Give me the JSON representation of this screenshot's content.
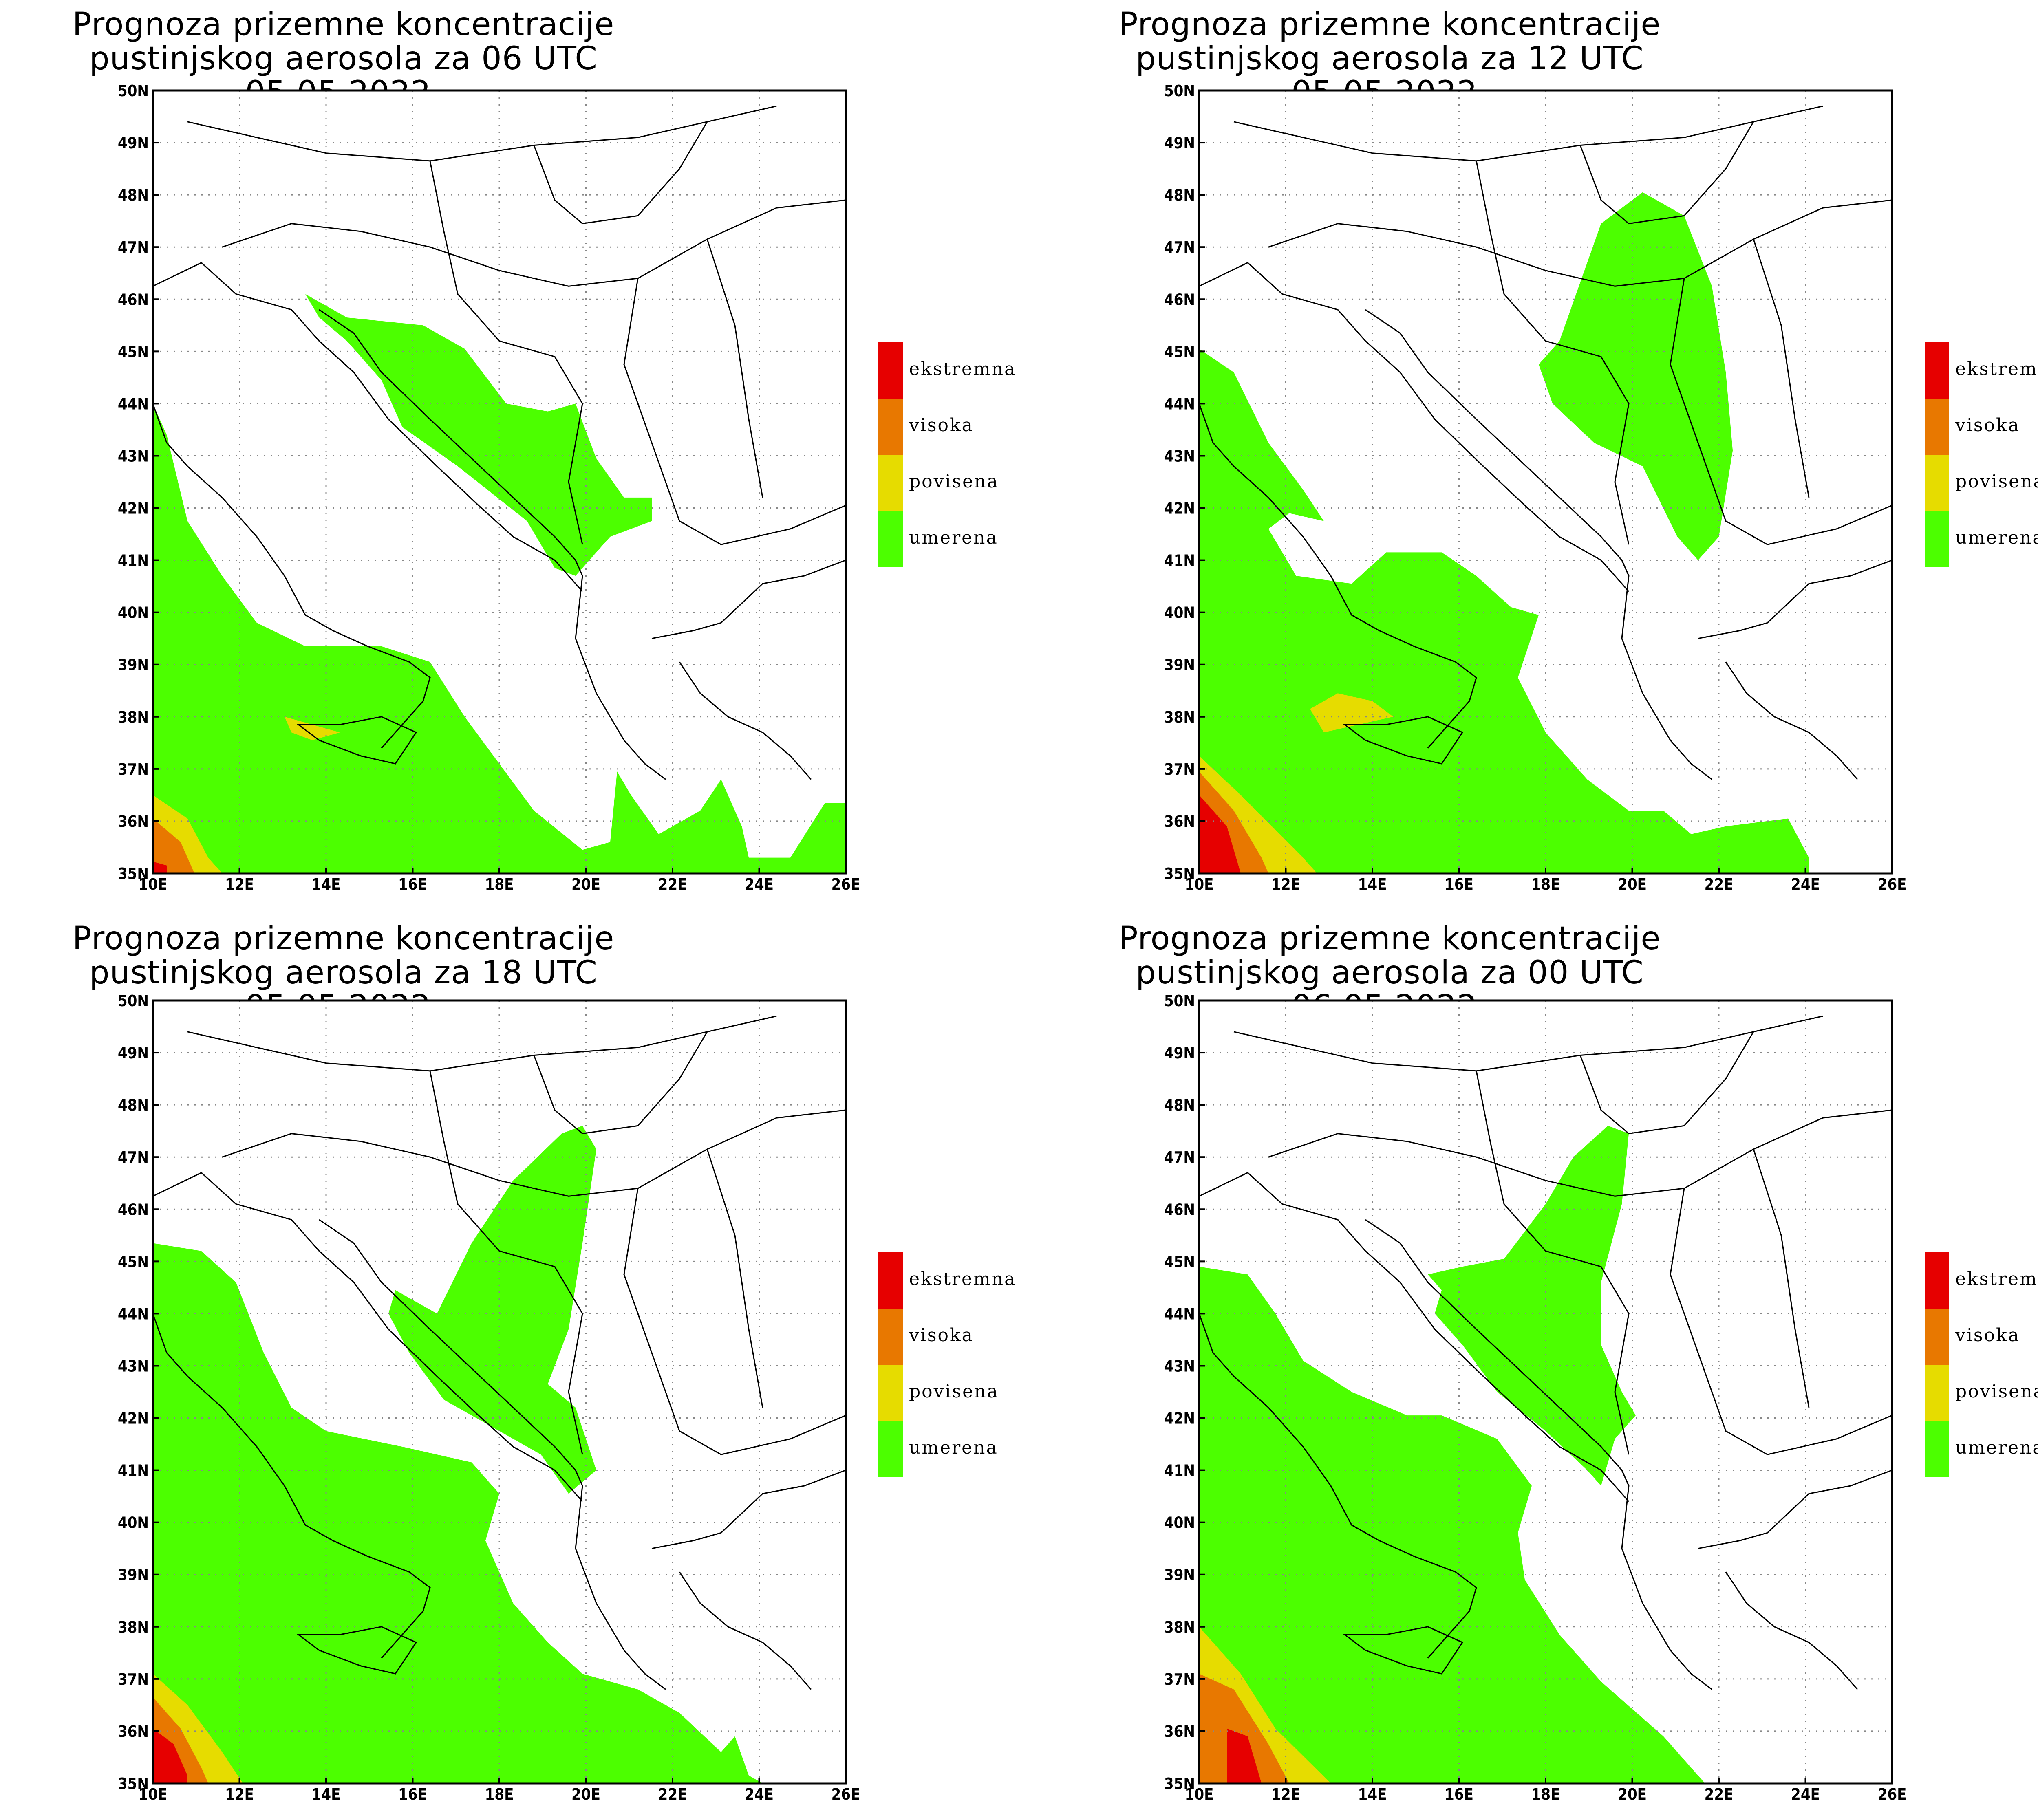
{
  "panels": [
    {
      "title_line1": "Prognoza prizemne koncentracije",
      "title_line2": "pustinjskog aerosola za 06 UTC 05.05.2022."
    },
    {
      "title_line1": "Prognoza prizemne koncentracije",
      "title_line2": "pustinjskog aerosola za 12 UTC 05.05.2022."
    },
    {
      "title_line1": "Prognoza prizemne koncentracije",
      "title_line2": "pustinjskog aerosola za 18 UTC 05.05.2022."
    },
    {
      "title_line1": "Prognoza prizemne koncentracije",
      "title_line2": "pustinjskog aerosola za 00 UTC 06.05.2022."
    }
  ],
  "axes": {
    "lat_labels": [
      "50N",
      "49N",
      "48N",
      "47N",
      "46N",
      "45N",
      "44N",
      "43N",
      "42N",
      "41N",
      "40N",
      "39N",
      "38N",
      "37N",
      "36N",
      "35N"
    ],
    "lon_labels": [
      "10E",
      "12E",
      "14E",
      "16E",
      "18E",
      "20E",
      "22E",
      "24E",
      "26E"
    ]
  },
  "legend": {
    "items": [
      {
        "label": "ekstremna",
        "color": "#e60000"
      },
      {
        "label": "visoka",
        "color": "#e87800"
      },
      {
        "label": "povisena",
        "color": "#e6dc00"
      },
      {
        "label": "umerena",
        "color": "#4cff00"
      }
    ]
  },
  "colors": {
    "umerena": "#4cff00",
    "povisena": "#e6dc00",
    "visoka": "#e87800",
    "ekstremna": "#e60000"
  }
}
